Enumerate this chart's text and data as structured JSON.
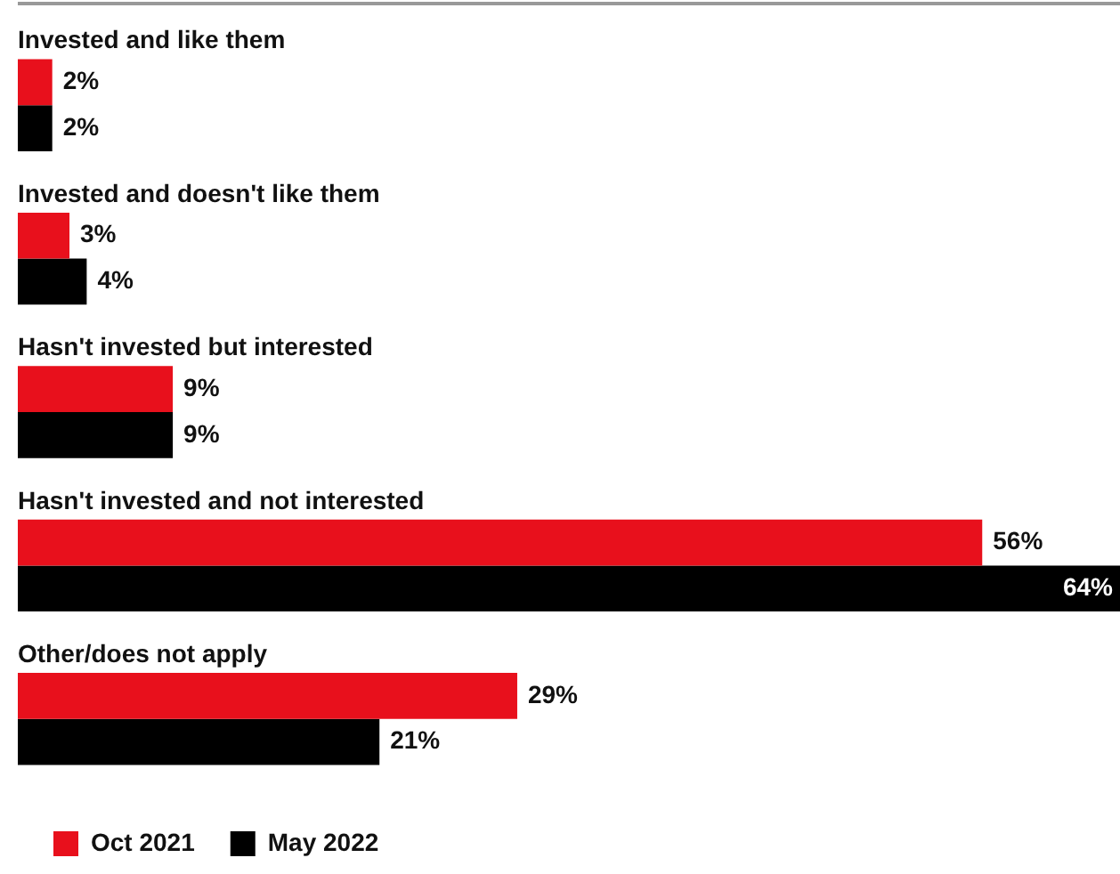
{
  "chart_data": {
    "type": "bar",
    "orientation": "horizontal",
    "categories": [
      "Invested and like them",
      "Invested and doesn't like them",
      "Hasn't invested but interested",
      "Hasn't invested and not interested",
      "Other/does not apply"
    ],
    "series": [
      {
        "name": "Oct 2021",
        "color": "#e8101c",
        "values": [
          2,
          3,
          9,
          56,
          29
        ],
        "value_labels": [
          "2%",
          "3%",
          "9%",
          "56%",
          "29%"
        ]
      },
      {
        "name": "May 2022",
        "color": "#000000",
        "values": [
          2,
          4,
          9,
          64,
          21
        ],
        "value_labels": [
          "2%",
          "4%",
          "9%",
          "64%",
          "21%"
        ]
      }
    ],
    "legend": "bottom left"
  }
}
